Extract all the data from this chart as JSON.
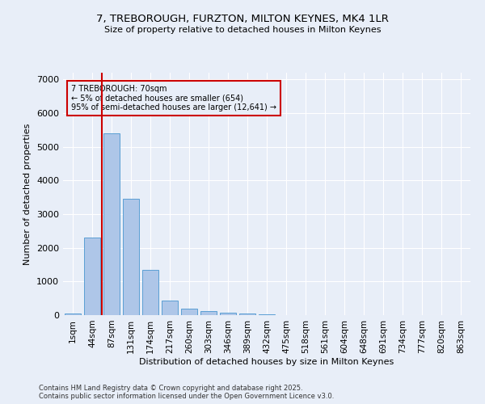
{
  "title_line1": "7, TREBOROUGH, FURZTON, MILTON KEYNES, MK4 1LR",
  "title_line2": "Size of property relative to detached houses in Milton Keynes",
  "xlabel": "Distribution of detached houses by size in Milton Keynes",
  "ylabel": "Number of detached properties",
  "categories": [
    "1sqm",
    "44sqm",
    "87sqm",
    "131sqm",
    "174sqm",
    "217sqm",
    "260sqm",
    "303sqm",
    "346sqm",
    "389sqm",
    "432sqm",
    "475sqm",
    "518sqm",
    "561sqm",
    "604sqm",
    "648sqm",
    "691sqm",
    "734sqm",
    "777sqm",
    "820sqm",
    "863sqm"
  ],
  "values": [
    50,
    2300,
    5400,
    3450,
    1350,
    430,
    200,
    130,
    80,
    50,
    15,
    10,
    5,
    2,
    2,
    1,
    1,
    0,
    0,
    0,
    0
  ],
  "bar_color": "#aec6e8",
  "bar_edge_color": "#5a9fd4",
  "marker_label": "7 TREBOROUGH: 70sqm",
  "marker_pct_smaller": "5% of detached houses are smaller (654)",
  "marker_pct_larger": "95% of semi-detached houses are larger (12,641)",
  "ylim": [
    0,
    7200
  ],
  "background_color": "#e8eef8",
  "grid_color": "#ffffff",
  "annotation_box_color": "#cc0000",
  "footer_line1": "Contains HM Land Registry data © Crown copyright and database right 2025.",
  "footer_line2": "Contains public sector information licensed under the Open Government Licence v3.0."
}
